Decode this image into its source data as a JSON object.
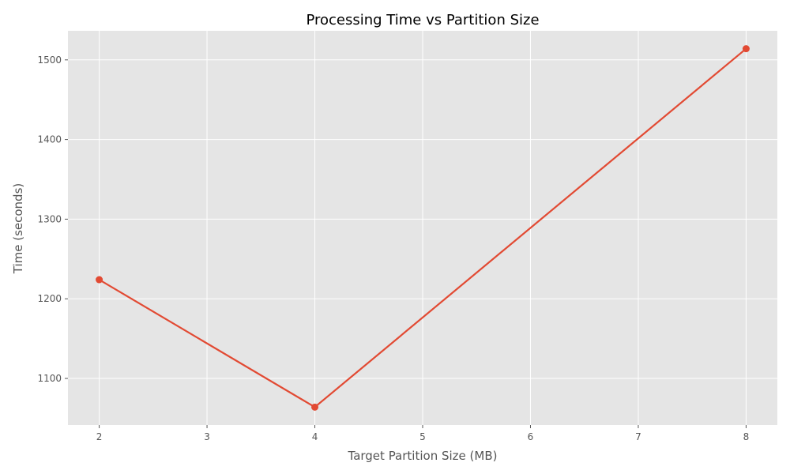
{
  "chart_data": {
    "type": "line",
    "title": "Processing Time vs Partition Size",
    "xlabel": "Target Partition Size (MB)",
    "ylabel": "Time (seconds)",
    "x": [
      2,
      4,
      8
    ],
    "series": [
      {
        "values": [
          1224,
          1064,
          1514
        ]
      }
    ],
    "xlim": [
      1.71,
      8.29
    ],
    "ylim": [
      1041.5,
      1536.5
    ],
    "xticks": [
      2,
      3,
      4,
      5,
      6,
      7,
      8
    ],
    "yticks": [
      1100,
      1200,
      1300,
      1400,
      1500
    ],
    "grid": true,
    "marker": "circle",
    "colors": {
      "line": "#e24a33",
      "plot_background": "#e5e5e5",
      "grid": "#ffffff",
      "tick_text": "#555555",
      "title_text": "#000000"
    }
  }
}
